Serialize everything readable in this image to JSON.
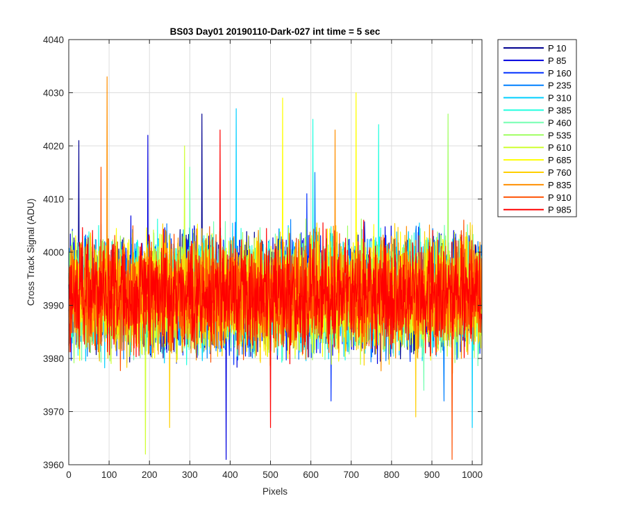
{
  "chart_data": {
    "type": "line",
    "title": "BS03 Day01 20190110-Dark-027 int time = 5 sec",
    "xlabel": "Pixels",
    "ylabel": "Cross Track Signal (ADU)",
    "xlim": [
      0,
      1024
    ],
    "ylim": [
      3960,
      4040
    ],
    "xticks": [
      0,
      100,
      200,
      300,
      400,
      500,
      600,
      700,
      800,
      900,
      1000
    ],
    "yticks": [
      3960,
      3970,
      3980,
      3990,
      4000,
      4010,
      4020,
      4030,
      4040
    ],
    "grid": true,
    "legend_position": "outside-right",
    "x_range": [
      0,
      1023
    ],
    "approx_mean": 3992,
    "approx_band": [
      3978,
      4006
    ],
    "series": [
      {
        "name": "P 10",
        "color": "#00008f",
        "extremes": [
          [
            330,
            4026
          ],
          [
            25,
            4021
          ]
        ]
      },
      {
        "name": "P 85",
        "color": "#0000df",
        "extremes": [
          [
            390,
            3961
          ],
          [
            196,
            4022
          ]
        ]
      },
      {
        "name": "P 160",
        "color": "#0030ff",
        "extremes": [
          [
            590,
            4011
          ],
          [
            650,
            3972
          ]
        ]
      },
      {
        "name": "P 235",
        "color": "#0080ff",
        "extremes": [
          [
            610,
            4015
          ],
          [
            930,
            3972
          ]
        ]
      },
      {
        "name": "P 310",
        "color": "#00cfff",
        "extremes": [
          [
            415,
            4027
          ],
          [
            1000,
            3967
          ]
        ]
      },
      {
        "name": "P 385",
        "color": "#20ffdf",
        "extremes": [
          [
            605,
            4025
          ],
          [
            768,
            4024
          ]
        ]
      },
      {
        "name": "P 460",
        "color": "#70ffaf",
        "extremes": [
          [
            300,
            4016
          ],
          [
            880,
            3974
          ]
        ]
      },
      {
        "name": "P 535",
        "color": "#9fff60",
        "extremes": [
          [
            940,
            4026
          ],
          [
            500,
            3978
          ]
        ]
      },
      {
        "name": "P 610",
        "color": "#cfff30",
        "extremes": [
          [
            190,
            3962
          ],
          [
            287,
            4020
          ]
        ]
      },
      {
        "name": "P 685",
        "color": "#ffff00",
        "extremes": [
          [
            530,
            4029
          ],
          [
            712,
            4030
          ]
        ]
      },
      {
        "name": "P 760",
        "color": "#ffcf00",
        "extremes": [
          [
            250,
            3967
          ],
          [
            860,
            3969
          ]
        ]
      },
      {
        "name": "P 835",
        "color": "#ff8f00",
        "extremes": [
          [
            95,
            4033
          ],
          [
            660,
            4023
          ]
        ]
      },
      {
        "name": "P 910",
        "color": "#ff5000",
        "extremes": [
          [
            950,
            3961
          ],
          [
            80,
            4016
          ]
        ]
      },
      {
        "name": "P 985",
        "color": "#ff0000",
        "extremes": [
          [
            375,
            4023
          ],
          [
            500,
            3967
          ]
        ]
      }
    ]
  }
}
